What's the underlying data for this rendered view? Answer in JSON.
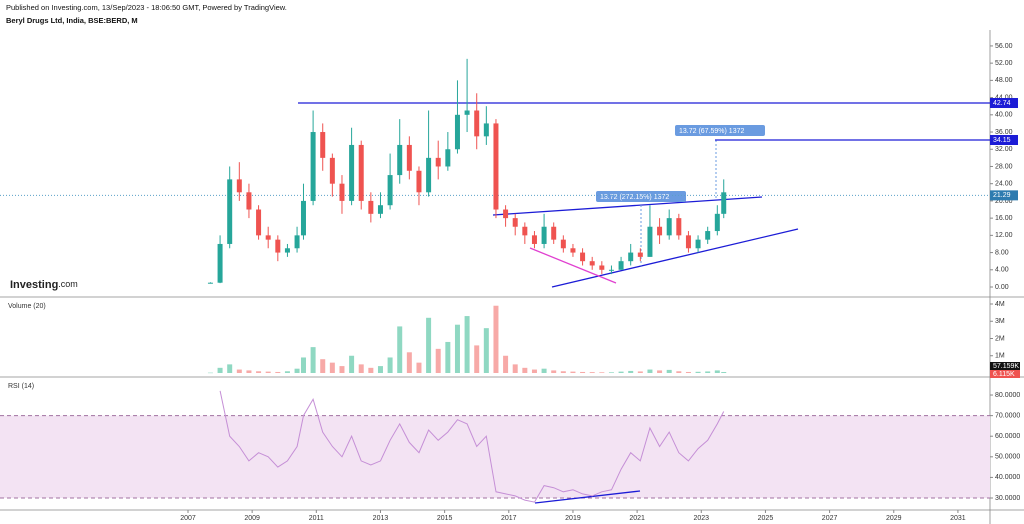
{
  "header": {
    "published": "Published on Investing.com, 13/Sep/2023 - 18:06:50 GMT, Powered by TradingView.",
    "symbol": "Beryl Drugs Ltd, India, BSE:BERD, M",
    "logo": "Investing",
    "logo_suffix": ".com"
  },
  "chart_data": [
    {
      "type": "candlestick",
      "up_color": "#26a69a",
      "down_color": "#ef5350",
      "x": [
        2007.7,
        2008.0,
        2008.3,
        2008.6,
        2008.9,
        2009.2,
        2009.5,
        2009.8,
        2010.1,
        2010.4,
        2010.6,
        2010.9,
        2011.2,
        2011.5,
        2011.8,
        2012.1,
        2012.4,
        2012.7,
        2013.0,
        2013.3,
        2013.6,
        2013.9,
        2014.2,
        2014.5,
        2014.8,
        2015.1,
        2015.4,
        2015.7,
        2016.0,
        2016.3,
        2016.6,
        2016.9,
        2017.2,
        2017.5,
        2017.8,
        2018.1,
        2018.4,
        2018.7,
        2019.0,
        2019.3,
        2019.6,
        2019.9,
        2020.2,
        2020.5,
        2020.8,
        2021.1,
        2021.4,
        2021.7,
        2022.0,
        2022.3,
        2022.6,
        2022.9,
        2023.2,
        2023.5,
        2023.7
      ],
      "open": [
        0.9,
        1,
        10,
        25,
        22,
        18,
        12,
        11,
        8,
        9,
        12,
        20,
        36,
        30,
        24,
        20,
        33,
        20,
        17,
        19,
        26,
        33,
        27,
        22,
        30,
        28,
        32,
        40,
        41,
        35,
        38,
        18,
        16,
        14,
        12,
        10,
        14,
        11,
        9,
        8,
        6,
        5,
        4,
        4,
        6,
        8,
        7,
        14,
        12,
        16,
        12,
        9,
        11,
        13,
        17
      ],
      "high": [
        1.1,
        12,
        28,
        29,
        24,
        19,
        14,
        12,
        10,
        14,
        24,
        41,
        38,
        31,
        26,
        37,
        34,
        22,
        22,
        31,
        39,
        35,
        28,
        41,
        34,
        36,
        48,
        53,
        45,
        42,
        39,
        19,
        17,
        15,
        13,
        17,
        15,
        12,
        10,
        9,
        7,
        6,
        5,
        7,
        10,
        9,
        19,
        16,
        18,
        17,
        13,
        12,
        14,
        19,
        25
      ],
      "low": [
        0.8,
        0.9,
        9,
        20,
        16,
        11,
        9,
        6,
        7,
        8,
        11,
        19,
        27,
        21,
        17,
        19,
        18,
        15,
        16,
        18,
        24,
        25,
        19,
        21,
        25,
        27,
        31,
        36,
        32,
        33,
        16,
        14,
        12,
        10,
        9,
        9,
        10,
        8,
        7,
        5,
        4,
        3,
        3,
        4,
        5,
        6,
        7,
        10,
        11,
        11,
        8,
        8,
        10,
        12,
        16
      ],
      "close": [
        1,
        10,
        25,
        22,
        18,
        12,
        11,
        8,
        9,
        12,
        20,
        36,
        30,
        24,
        20,
        33,
        20,
        17,
        19,
        26,
        33,
        27,
        22,
        30,
        28,
        32,
        40,
        41,
        35,
        38,
        18,
        16,
        14,
        12,
        10,
        14,
        11,
        9,
        8,
        6,
        5,
        4,
        4,
        6,
        8,
        7,
        14,
        12,
        16,
        12,
        9,
        11,
        13,
        17,
        22
      ],
      "xlim": [
        2001.14,
        2032
      ],
      "ylim": [
        -2.32,
        59.7
      ],
      "yticks": [
        {
          "value": 0,
          "label": "0.00"
        },
        {
          "value": 4,
          "label": "4.00"
        },
        {
          "value": 8,
          "label": "8.00"
        },
        {
          "value": 12,
          "label": "12.00"
        },
        {
          "value": 16,
          "label": "16.00"
        },
        {
          "value": 20,
          "label": "20.00"
        },
        {
          "value": 24,
          "label": "24.00"
        },
        {
          "value": 28,
          "label": "28.00"
        },
        {
          "value": 32,
          "label": "32.00"
        },
        {
          "value": 36,
          "label": "36.00"
        },
        {
          "value": 40,
          "label": "40.00"
        },
        {
          "value": 44,
          "label": "44.00"
        },
        {
          "value": 48,
          "label": "48.00"
        },
        {
          "value": 52,
          "label": "52.00"
        },
        {
          "value": 56,
          "label": "56.00"
        }
      ],
      "levels": [
        42.74,
        34.15
      ],
      "level_color": "#1c1cd6",
      "last_price": 21.29,
      "annotations": [
        "13.72 (272.15%) 1372",
        "13.72 (67.59%) 1372"
      ]
    },
    {
      "type": "bar",
      "title": "Volume (20)",
      "x": [
        2007.7,
        2008.0,
        2008.3,
        2008.6,
        2008.9,
        2009.2,
        2009.5,
        2009.8,
        2010.1,
        2010.4,
        2010.6,
        2010.9,
        2011.2,
        2011.5,
        2011.8,
        2012.1,
        2012.4,
        2012.7,
        2013.0,
        2013.3,
        2013.6,
        2013.9,
        2014.2,
        2014.5,
        2014.8,
        2015.1,
        2015.4,
        2015.7,
        2016.0,
        2016.3,
        2016.6,
        2016.9,
        2017.2,
        2017.5,
        2017.8,
        2018.1,
        2018.4,
        2018.7,
        2019.0,
        2019.3,
        2019.6,
        2019.9,
        2020.2,
        2020.5,
        2020.8,
        2021.1,
        2021.4,
        2021.7,
        2022.0,
        2022.3,
        2022.6,
        2022.9,
        2023.2,
        2023.5,
        2023.7
      ],
      "values": [
        20000,
        300000,
        500000,
        200000,
        150000,
        100000,
        80000,
        60000,
        100000,
        250000,
        900000,
        1500000,
        800000,
        600000,
        400000,
        1000000,
        500000,
        300000,
        400000,
        900000,
        2700000,
        1200000,
        600000,
        3200000,
        1400000,
        1800000,
        2800000,
        3300000,
        1600000,
        2600000,
        3900000,
        1000000,
        500000,
        300000,
        200000,
        250000,
        150000,
        100000,
        80000,
        60000,
        50000,
        40000,
        40000,
        80000,
        120000,
        90000,
        200000,
        150000,
        180000,
        100000,
        60000,
        70000,
        90000,
        150000,
        57159
      ],
      "up_color": "#8fd8c2",
      "down_color": "#f7a9a7",
      "xlim": [
        2001.14,
        2032
      ],
      "ylim": [
        -174000,
        4290000
      ],
      "yticks": [
        {
          "value": 1000000,
          "label": "1M"
        },
        {
          "value": 2000000,
          "label": "2M"
        },
        {
          "value": 3000000,
          "label": "3M"
        },
        {
          "value": 4000000,
          "label": "4M"
        }
      ],
      "last_values": [
        {
          "value": 57159,
          "label": "57.159K"
        },
        {
          "value": 6115,
          "label": "6.115K"
        }
      ]
    },
    {
      "type": "line",
      "title": "RSI (14)",
      "color": "#c58fd6",
      "x": [
        2007.7,
        2008.0,
        2008.3,
        2008.6,
        2008.9,
        2009.2,
        2009.5,
        2009.8,
        2010.1,
        2010.4,
        2010.6,
        2010.9,
        2011.2,
        2011.5,
        2011.8,
        2012.1,
        2012.4,
        2012.7,
        2013.0,
        2013.3,
        2013.6,
        2013.9,
        2014.2,
        2014.5,
        2014.8,
        2015.1,
        2015.4,
        2015.7,
        2016.0,
        2016.3,
        2016.6,
        2016.9,
        2017.2,
        2017.5,
        2017.8,
        2018.1,
        2018.4,
        2018.7,
        2019.0,
        2019.3,
        2019.6,
        2019.9,
        2020.2,
        2020.5,
        2020.8,
        2021.1,
        2021.4,
        2021.7,
        2022.0,
        2022.3,
        2022.6,
        2022.9,
        2023.2,
        2023.5,
        2023.7
      ],
      "values": [
        null,
        82,
        60,
        55,
        48,
        52,
        50,
        45,
        48,
        55,
        70,
        78,
        62,
        55,
        50,
        60,
        48,
        46,
        48,
        58,
        66,
        57,
        52,
        63,
        58,
        62,
        68,
        66,
        55,
        60,
        33,
        32,
        31,
        29,
        28,
        36,
        35,
        33,
        34,
        32,
        31,
        33,
        34,
        44,
        52,
        48,
        64,
        55,
        62,
        52,
        48,
        54,
        58,
        66,
        72
      ],
      "bands": [
        30,
        70
      ],
      "band_color": "#f3e3f3",
      "xlim": [
        2001.14,
        2032
      ],
      "ylim": [
        23.2,
        87.3
      ],
      "yticks": [
        {
          "value": 30,
          "label": "30.0000"
        },
        {
          "value": 40,
          "label": "40.0000"
        },
        {
          "value": 50,
          "label": "50.0000"
        },
        {
          "value": 60,
          "label": "60.0000"
        },
        {
          "value": 70,
          "label": "70.0000"
        },
        {
          "value": 80,
          "label": "80.0000"
        }
      ],
      "xticks": [
        2007,
        2009,
        2011,
        2013,
        2015,
        2017,
        2019,
        2021,
        2023,
        2025,
        2027,
        2029,
        2031
      ]
    }
  ]
}
